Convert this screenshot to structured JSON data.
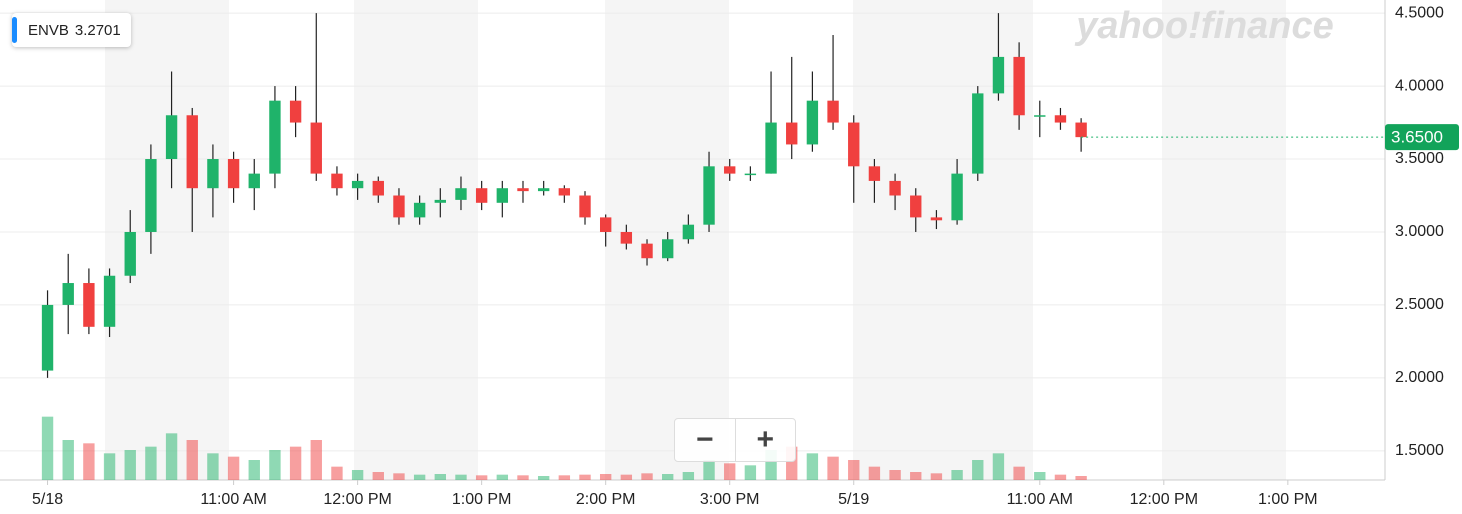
{
  "chart_data": {
    "type": "candlestick",
    "ticker": "ENVB",
    "ticker_value": "3.2701",
    "brand": "yahoo!finance",
    "x": [
      0,
      10,
      20,
      30,
      40,
      50,
      60,
      70,
      80,
      90,
      100,
      110,
      120,
      130,
      140,
      150,
      160,
      170,
      180,
      190,
      200,
      210,
      220,
      230,
      240,
      250,
      260,
      270,
      280,
      290,
      300,
      310,
      320,
      330,
      340,
      350,
      360,
      370,
      380,
      390,
      400,
      410,
      420,
      430,
      440,
      450,
      460,
      470,
      480,
      490,
      500
    ],
    "open": [
      2.05,
      2.5,
      2.65,
      2.35,
      2.7,
      3.0,
      3.5,
      3.8,
      3.3,
      3.5,
      3.3,
      3.4,
      3.9,
      3.75,
      3.4,
      3.3,
      3.35,
      3.25,
      3.1,
      3.2,
      3.22,
      3.3,
      3.2,
      3.3,
      3.28,
      3.3,
      3.25,
      3.1,
      3.0,
      2.92,
      2.82,
      2.95,
      3.05,
      3.45,
      3.4,
      3.4,
      3.75,
      3.6,
      3.9,
      3.75,
      3.45,
      3.35,
      3.25,
      3.1,
      3.08,
      3.4,
      3.95,
      4.2,
      3.8,
      3.8,
      3.75
    ],
    "high": [
      2.6,
      2.85,
      2.75,
      2.75,
      3.15,
      3.6,
      4.1,
      3.85,
      3.6,
      3.55,
      3.5,
      4.0,
      4.0,
      4.5,
      3.45,
      3.4,
      3.38,
      3.3,
      3.25,
      3.3,
      3.38,
      3.35,
      3.35,
      3.35,
      3.35,
      3.32,
      3.28,
      3.12,
      3.05,
      2.95,
      3.0,
      3.12,
      3.55,
      3.5,
      3.45,
      4.1,
      4.2,
      4.1,
      4.35,
      3.8,
      3.5,
      3.4,
      3.3,
      3.15,
      3.5,
      4.0,
      4.5,
      4.3,
      3.9,
      3.85,
      3.78
    ],
    "low": [
      2.0,
      2.3,
      2.3,
      2.28,
      2.65,
      2.85,
      3.3,
      3.0,
      3.1,
      3.2,
      3.15,
      3.3,
      3.65,
      3.35,
      3.25,
      3.22,
      3.2,
      3.05,
      3.05,
      3.1,
      3.15,
      3.15,
      3.1,
      3.2,
      3.25,
      3.2,
      3.05,
      2.9,
      2.88,
      2.77,
      2.8,
      2.92,
      3.0,
      3.35,
      3.35,
      3.4,
      3.5,
      3.55,
      3.7,
      3.2,
      3.2,
      3.15,
      3.0,
      3.02,
      3.05,
      3.35,
      3.9,
      3.7,
      3.65,
      3.7,
      3.55
    ],
    "close": [
      2.5,
      2.65,
      2.35,
      2.7,
      3.0,
      3.5,
      3.8,
      3.3,
      3.5,
      3.3,
      3.4,
      3.9,
      3.75,
      3.4,
      3.3,
      3.35,
      3.25,
      3.1,
      3.2,
      3.22,
      3.3,
      3.2,
      3.3,
      3.28,
      3.3,
      3.25,
      3.1,
      3.0,
      2.92,
      2.82,
      2.95,
      3.05,
      3.45,
      3.4,
      3.4,
      3.75,
      3.6,
      3.9,
      3.75,
      3.45,
      3.35,
      3.25,
      3.1,
      3.08,
      3.4,
      3.95,
      4.2,
      3.8,
      3.8,
      3.75,
      3.65
    ],
    "volume": [
      95,
      60,
      55,
      40,
      45,
      50,
      70,
      60,
      40,
      35,
      30,
      45,
      50,
      60,
      20,
      15,
      12,
      10,
      8,
      9,
      8,
      7,
      8,
      7,
      6,
      7,
      8,
      9,
      8,
      10,
      9,
      12,
      30,
      25,
      22,
      45,
      50,
      40,
      35,
      30,
      20,
      15,
      12,
      10,
      15,
      30,
      40,
      20,
      12,
      8,
      6
    ],
    "volume_lim": [
      0,
      120
    ],
    "current_price": {
      "value": 3.65,
      "label": "3.6500"
    },
    "xlim": [
      -23,
      647
    ],
    "xticks": [
      {
        "value": 0,
        "label": "5/18"
      },
      {
        "value": 90,
        "label": "11:00 AM"
      },
      {
        "value": 150,
        "label": "12:00 PM"
      },
      {
        "value": 210,
        "label": "1:00 PM"
      },
      {
        "value": 270,
        "label": "2:00 PM"
      },
      {
        "value": 330,
        "label": "3:00 PM"
      },
      {
        "value": 390,
        "label": "5/19"
      },
      {
        "value": 480,
        "label": "11:00 AM"
      },
      {
        "value": 540,
        "label": "12:00 PM"
      },
      {
        "value": 600,
        "label": "1:00 PM"
      }
    ],
    "ylim": [
      1.3,
      4.59
    ],
    "yticks": [
      {
        "value": 1.5,
        "label": "1.5000"
      },
      {
        "value": 2,
        "label": "2.0000"
      },
      {
        "value": 2.5,
        "label": "2.5000"
      },
      {
        "value": 3,
        "label": "3.0000"
      },
      {
        "value": 3.5,
        "label": "3.5000"
      },
      {
        "value": 4,
        "label": "4.0000"
      },
      {
        "value": 4.5,
        "label": "4.5000"
      }
    ],
    "up_color": "#1fb36a",
    "down_color": "#f0403f",
    "grid": true
  }
}
